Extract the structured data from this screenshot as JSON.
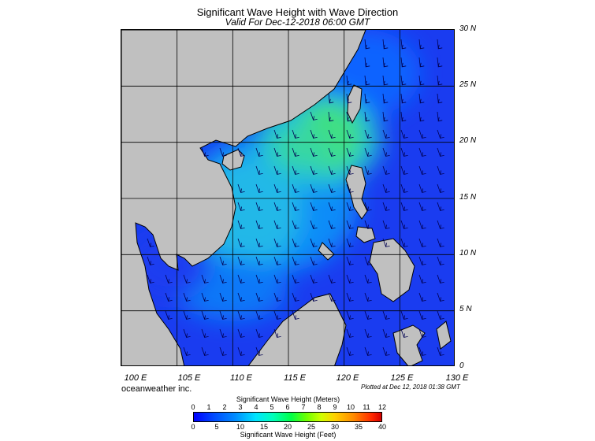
{
  "title": "Significant Wave Height with Wave Direction",
  "subtitle": "Valid For Dec-12-2018 06:00 GMT",
  "credit": "oceanweather inc.",
  "plotted": "Plotted at Dec 12, 2018 01:38 GMT",
  "lat_labels": [
    "30 N",
    "25 N",
    "20 N",
    "15 N",
    "10 N",
    "5 N",
    "0"
  ],
  "lon_labels": [
    "100 E",
    "105 E",
    "110 E",
    "115 E",
    "120 E",
    "125 E",
    "130 E"
  ],
  "legend": {
    "title_meters": "Significant Wave Height (Meters)",
    "title_feet": "Significant Wave Height (Feet)",
    "meters_ticks": [
      "0",
      "1",
      "2",
      "3",
      "4",
      "5",
      "6",
      "7",
      "8",
      "9",
      "10",
      "11",
      "12"
    ],
    "feet_ticks": [
      "0",
      "5",
      "10",
      "15",
      "20",
      "25",
      "30",
      "35",
      "40"
    ]
  },
  "colors": {
    "land": "#c0c0c0",
    "sea_deep": "#1a3cf0",
    "sea_mid": "#0a78f8",
    "sea_cyan": "#20c8e8",
    "sea_green": "#40e080",
    "arrow": "#000050"
  }
}
